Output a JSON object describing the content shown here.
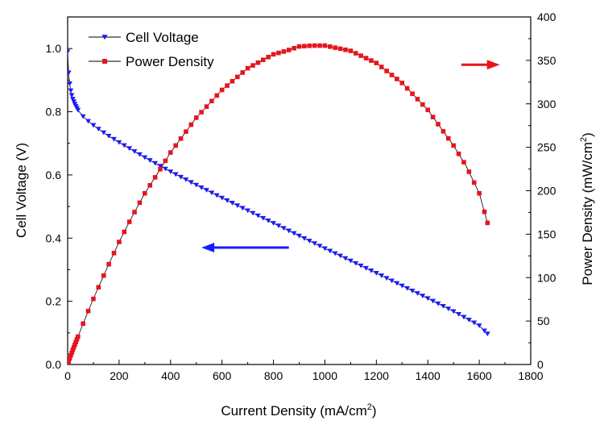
{
  "chart_data": {
    "type": "line",
    "title": "",
    "xlabel": {
      "main": "Current Density (mA/cm",
      "sup": "2",
      "end": ")"
    },
    "ylabel_left": "Cell Voltage (V)",
    "ylabel_right": {
      "main": "Power Density (mW/cm",
      "sup": "2",
      "end": ")"
    },
    "xlim": [
      0,
      1800
    ],
    "ylim_left": [
      0,
      1.1
    ],
    "ylim_right": [
      0,
      400
    ],
    "x_ticks": [
      "0",
      "200",
      "400",
      "600",
      "800",
      "1000",
      "1200",
      "1400",
      "1600",
      "1800"
    ],
    "y_left_ticks": [
      "0.0",
      "0.2",
      "0.4",
      "0.6",
      "0.8",
      "1.0"
    ],
    "y_right_ticks": [
      "0",
      "50",
      "100",
      "150",
      "200",
      "250",
      "300",
      "350",
      "400"
    ],
    "legend_position": "top-left",
    "series": [
      {
        "name": "Cell Voltage",
        "axis": "left",
        "marker": "triangle-down",
        "color": "#1a1aff",
        "x": [
          0,
          2,
          5,
          10,
          15,
          20,
          30,
          40,
          50,
          60,
          80,
          100,
          150,
          200,
          300,
          400,
          500,
          600,
          700,
          800,
          900,
          1000,
          1100,
          1200,
          1300,
          1400,
          1500,
          1600,
          1632
        ],
        "y": [
          0.99,
          0.95,
          0.91,
          0.875,
          0.855,
          0.84,
          0.82,
          0.805,
          0.795,
          0.785,
          0.77,
          0.757,
          0.728,
          0.703,
          0.655,
          0.61,
          0.568,
          0.527,
          0.487,
          0.447,
          0.407,
          0.367,
          0.328,
          0.289,
          0.249,
          0.209,
          0.168,
          0.123,
          0.097
        ]
      },
      {
        "name": "Power Density",
        "axis": "right",
        "marker": "square",
        "color": "#e8141c",
        "x": [
          0,
          10,
          20,
          40,
          60,
          80,
          100,
          150,
          200,
          250,
          300,
          350,
          400,
          450,
          500,
          600,
          700,
          800,
          850,
          900,
          950,
          1000,
          1050,
          1100,
          1150,
          1200,
          1300,
          1400,
          1500,
          1550,
          1600,
          1632
        ],
        "y": [
          0,
          8.8,
          16.8,
          32,
          47,
          61.5,
          75.5,
          109,
          141,
          170,
          197,
          220,
          244,
          264,
          284,
          316,
          341,
          357,
          361,
          366,
          367,
          367,
          364,
          361,
          354,
          347,
          324,
          293,
          252,
          228,
          197,
          163
        ]
      }
    ],
    "annotations": [
      {
        "label": "arrow pointing right to Power Density axis",
        "color": "#e8141c",
        "direction": "right",
        "x_from": 1530,
        "x_to": 1680,
        "y_right": 345
      },
      {
        "label": "arrow pointing left to Cell Voltage axis",
        "color": "#1a1aff",
        "direction": "left",
        "x_from": 860,
        "x_to": 520,
        "y_left": 0.37
      }
    ]
  }
}
